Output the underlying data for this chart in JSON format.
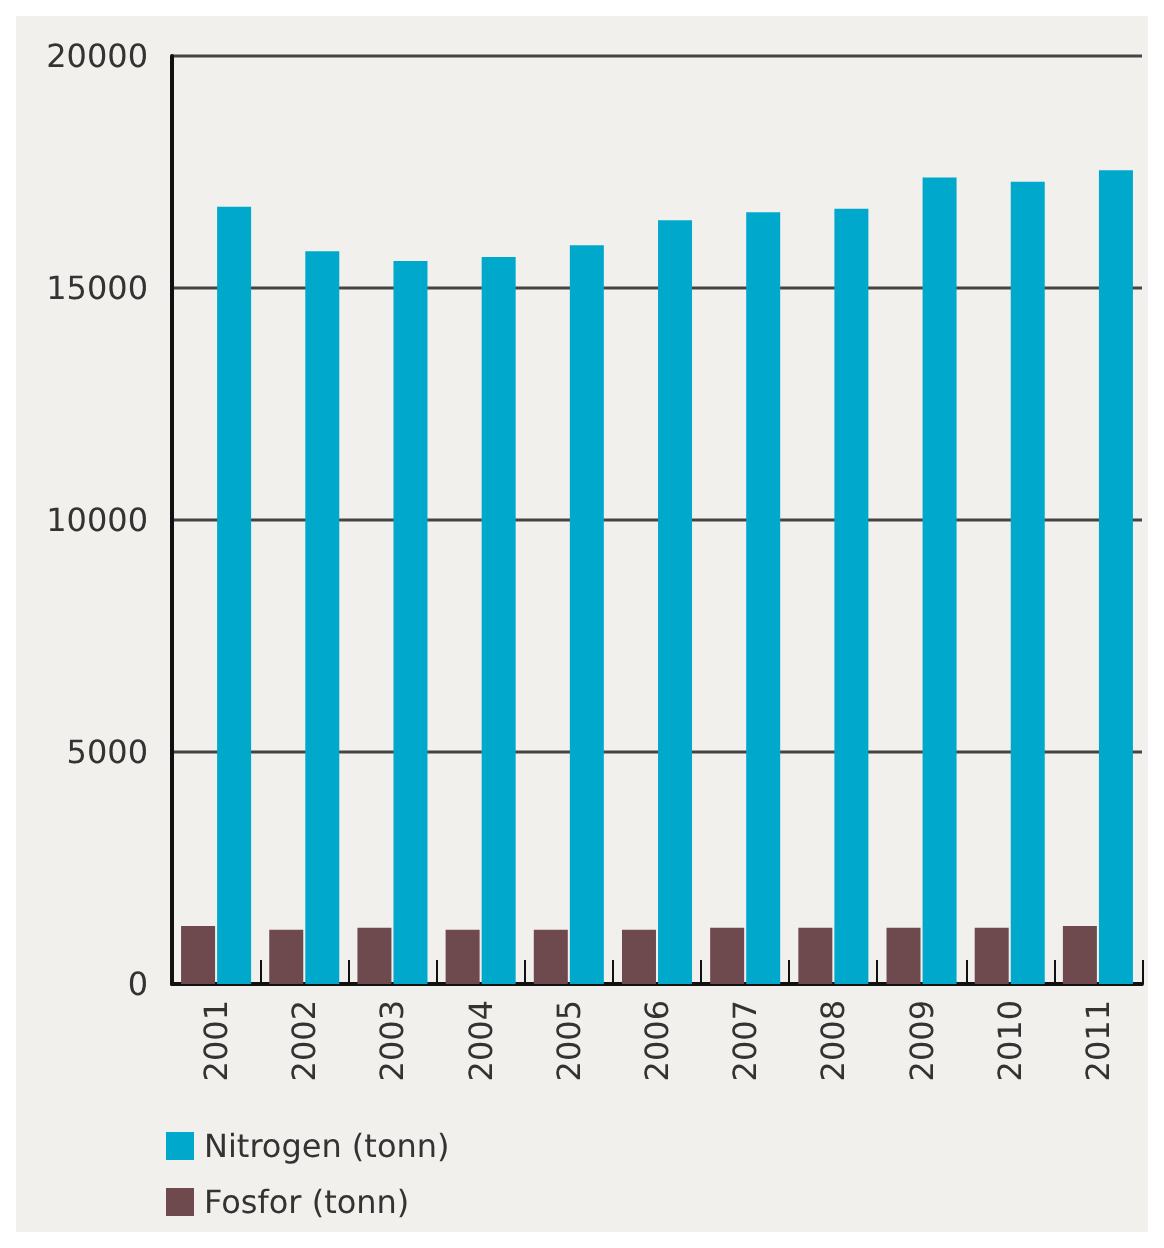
{
  "chart_data": {
    "type": "bar",
    "categories": [
      "2001",
      "2002",
      "2003",
      "2004",
      "2005",
      "2006",
      "2007",
      "2008",
      "2009",
      "2010",
      "2011"
    ],
    "series": [
      {
        "name": "Nitrogen (tonn)",
        "color": "#00a8cc",
        "values": [
          16750,
          15790,
          15580,
          15670,
          15920,
          16460,
          16630,
          16710,
          17380,
          17290,
          17540
        ]
      },
      {
        "name": "Fosfor (tonn)",
        "color": "#6e4a4f",
        "values": [
          1250,
          1170,
          1210,
          1170,
          1170,
          1170,
          1210,
          1210,
          1210,
          1210,
          1250
        ]
      }
    ],
    "ylim": [
      0,
      20000
    ],
    "yticks": [
      0,
      5000,
      10000,
      15000,
      20000
    ],
    "grid": "y",
    "legend": "bottom left"
  }
}
